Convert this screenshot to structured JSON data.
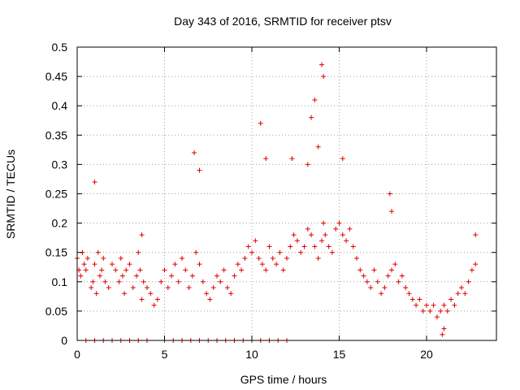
{
  "chart_data": {
    "type": "scatter",
    "title": "Day 343 of 2016, SRMTID for receiver ptsv",
    "xlabel": "GPS time / hours",
    "ylabel": "SRMTID / TECUs",
    "xlim": [
      0,
      24
    ],
    "ylim": [
      0,
      0.5
    ],
    "xticks": [
      0,
      5,
      10,
      15,
      20
    ],
    "xtick_labels": [
      "0",
      "5",
      "10",
      "15",
      "20"
    ],
    "yticks": [
      0,
      0.05,
      0.1,
      0.15,
      0.2,
      0.25,
      0.3,
      0.35,
      0.4,
      0.45,
      0.5
    ],
    "ytick_labels": [
      "0",
      "0.05",
      "0.1",
      "0.15",
      "0.2",
      "0.25",
      "0.3",
      "0.35",
      "0.4",
      "0.45",
      "0.5"
    ],
    "grid": true,
    "marker": "+",
    "marker_color": "#e00000",
    "series": [
      {
        "name": "SRMTID",
        "x": [
          0.0,
          0.1,
          0.2,
          0.3,
          0.4,
          0.5,
          0.6,
          0.8,
          0.9,
          1.0,
          1.1,
          1.2,
          1.3,
          1.4,
          1.5,
          1.6,
          1.8,
          2.0,
          2.2,
          2.4,
          2.5,
          2.6,
          2.7,
          2.8,
          3.0,
          3.2,
          3.4,
          3.5,
          3.6,
          3.7,
          3.8,
          4.0,
          4.2,
          4.4,
          4.6,
          4.8,
          5.0,
          5.2,
          5.4,
          5.6,
          5.8,
          6.0,
          6.2,
          6.4,
          6.6,
          6.8,
          7.0,
          7.2,
          7.4,
          7.6,
          7.8,
          8.0,
          8.2,
          8.4,
          8.6,
          8.8,
          9.0,
          9.2,
          9.4,
          9.6,
          9.8,
          10.0,
          10.2,
          10.4,
          10.6,
          10.8,
          11.0,
          11.2,
          11.4,
          11.6,
          11.8,
          12.0,
          12.2,
          12.4,
          12.6,
          12.8,
          13.0,
          13.2,
          13.4,
          13.6,
          13.8,
          14.0,
          14.1,
          14.2,
          14.4,
          14.6,
          14.8,
          15.0,
          15.2,
          15.4,
          15.6,
          15.8,
          16.0,
          16.2,
          16.4,
          16.6,
          16.8,
          17.0,
          17.2,
          17.4,
          17.6,
          17.8,
          18.0,
          18.2,
          18.4,
          18.6,
          18.8,
          19.0,
          19.2,
          19.4,
          19.6,
          19.8,
          20.0,
          20.2,
          20.4,
          20.6,
          20.8,
          21.0,
          21.2,
          21.4,
          21.6,
          21.8,
          22.0,
          22.2,
          22.4,
          22.6,
          22.8,
          0.5,
          1.0,
          1.5,
          2.0,
          2.5,
          3.0,
          3.5,
          4.0,
          5.0,
          5.5,
          6.0,
          6.5,
          7.0,
          7.5,
          8.0,
          8.5,
          9.0,
          9.5,
          10.0,
          10.5,
          11.0,
          11.5,
          12.0,
          1.0,
          3.7,
          6.7,
          7.0,
          10.5,
          10.8,
          12.3,
          13.2,
          13.4,
          13.6,
          13.8,
          14.0,
          14.1,
          15.2,
          17.9,
          18.0,
          20.9,
          21.0,
          22.8
        ],
        "y": [
          0.14,
          0.12,
          0.11,
          0.15,
          0.13,
          0.12,
          0.14,
          0.09,
          0.1,
          0.13,
          0.08,
          0.15,
          0.11,
          0.12,
          0.14,
          0.1,
          0.09,
          0.13,
          0.12,
          0.1,
          0.14,
          0.11,
          0.08,
          0.12,
          0.13,
          0.09,
          0.11,
          0.15,
          0.12,
          0.07,
          0.1,
          0.09,
          0.08,
          0.06,
          0.07,
          0.1,
          0.12,
          0.09,
          0.11,
          0.13,
          0.1,
          0.14,
          0.12,
          0.09,
          0.11,
          0.15,
          0.13,
          0.1,
          0.08,
          0.07,
          0.09,
          0.11,
          0.1,
          0.12,
          0.09,
          0.08,
          0.11,
          0.13,
          0.12,
          0.14,
          0.16,
          0.15,
          0.17,
          0.14,
          0.13,
          0.12,
          0.16,
          0.14,
          0.13,
          0.15,
          0.12,
          0.14,
          0.16,
          0.18,
          0.17,
          0.15,
          0.16,
          0.19,
          0.18,
          0.16,
          0.14,
          0.17,
          0.2,
          0.18,
          0.16,
          0.15,
          0.19,
          0.2,
          0.18,
          0.17,
          0.19,
          0.16,
          0.14,
          0.12,
          0.11,
          0.1,
          0.09,
          0.12,
          0.1,
          0.08,
          0.09,
          0.11,
          0.12,
          0.13,
          0.1,
          0.11,
          0.09,
          0.08,
          0.07,
          0.06,
          0.07,
          0.05,
          0.06,
          0.05,
          0.06,
          0.04,
          0.05,
          0.06,
          0.05,
          0.07,
          0.06,
          0.08,
          0.09,
          0.08,
          0.1,
          0.12,
          0.13,
          0.0,
          0.0,
          0.0,
          0.0,
          0.0,
          0.0,
          0.0,
          0.0,
          0.0,
          0.0,
          0.0,
          0.0,
          0.0,
          0.0,
          0.0,
          0.0,
          0.0,
          0.0,
          0.0,
          0.0,
          0.0,
          0.0,
          0.0,
          0.27,
          0.18,
          0.32,
          0.29,
          0.37,
          0.31,
          0.31,
          0.3,
          0.38,
          0.41,
          0.33,
          0.47,
          0.45,
          0.31,
          0.25,
          0.22,
          0.01,
          0.02,
          0.18
        ]
      }
    ]
  }
}
